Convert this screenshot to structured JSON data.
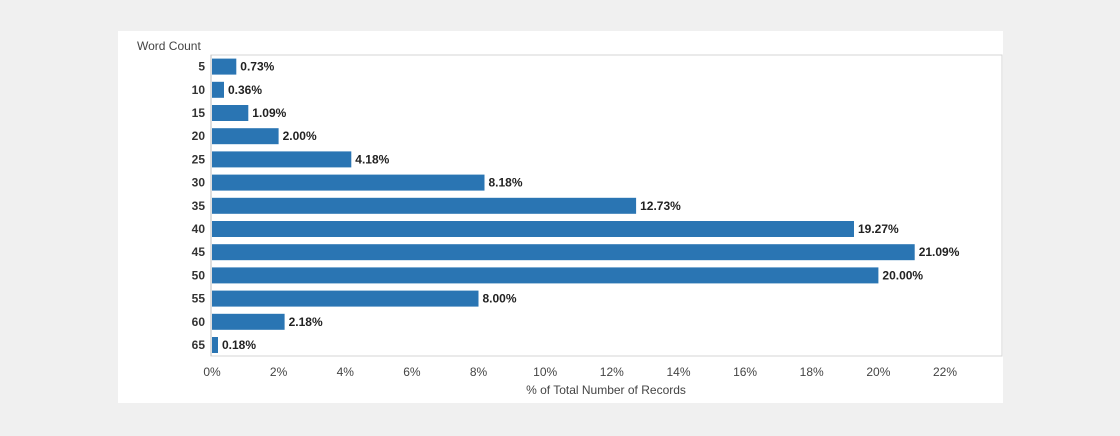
{
  "chart_data": {
    "type": "bar",
    "orientation": "horizontal",
    "title": "",
    "ylabel": "Word Count",
    "xlabel": "% of Total Number of Records",
    "categories": [
      "5",
      "10",
      "15",
      "20",
      "25",
      "30",
      "35",
      "40",
      "45",
      "50",
      "55",
      "60",
      "65"
    ],
    "values": [
      0.73,
      0.36,
      1.09,
      2.0,
      4.18,
      8.18,
      12.73,
      19.27,
      21.09,
      20.0,
      8.0,
      2.18,
      0.18
    ],
    "value_labels": [
      "0.73%",
      "0.36%",
      "1.09%",
      "2.00%",
      "4.18%",
      "8.18%",
      "12.73%",
      "19.27%",
      "21.09%",
      "20.00%",
      "8.00%",
      "2.18%",
      "0.18%"
    ],
    "xlim": [
      0,
      22
    ],
    "xticks": [
      0,
      2,
      4,
      6,
      8,
      10,
      12,
      14,
      16,
      18,
      20,
      22
    ],
    "xtick_labels": [
      "0%",
      "2%",
      "4%",
      "6%",
      "8%",
      "10%",
      "12%",
      "14%",
      "16%",
      "18%",
      "20%",
      "22%"
    ],
    "grid": false,
    "colors": {
      "bar": "#2a75b3",
      "background": "#f0f0f0",
      "panel": "#ffffff",
      "border": "#d4d4d4"
    }
  }
}
